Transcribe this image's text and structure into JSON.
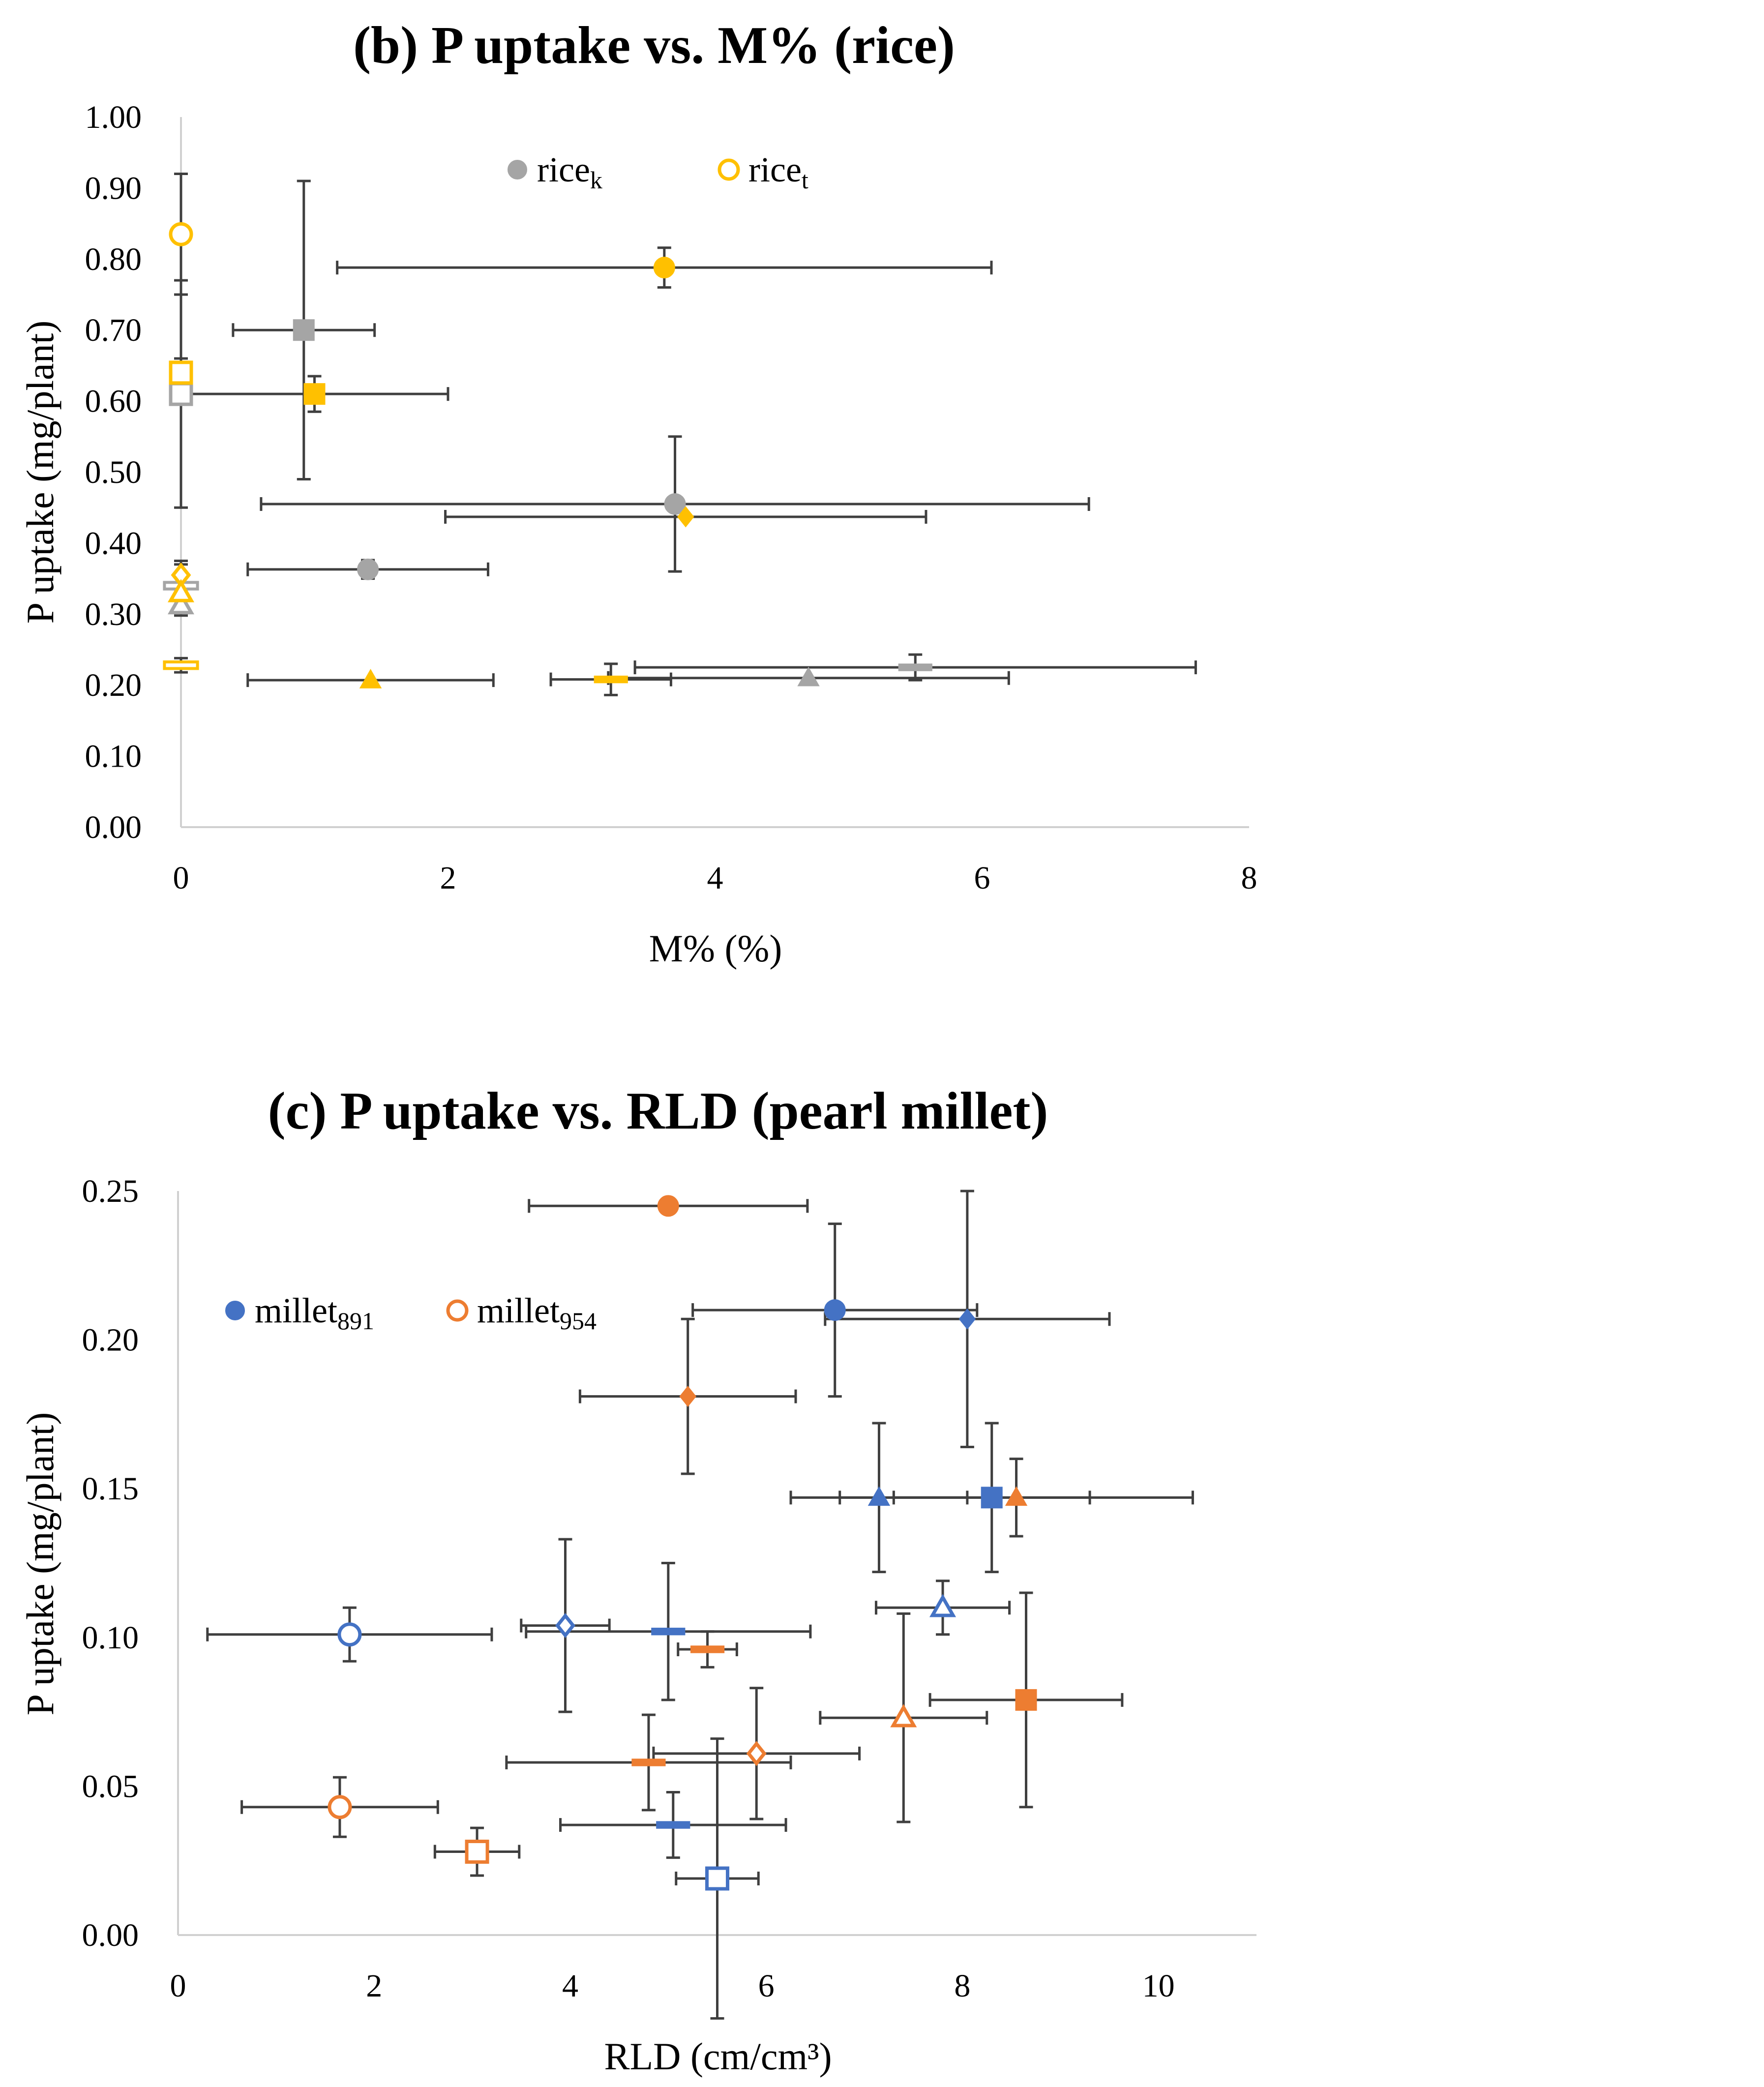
{
  "chart_data": [
    {
      "type": "scatter",
      "title": "(b) P uptake vs. M% (rice)",
      "xlabel": "M% (%)",
      "ylabel": "P uptake (mg/plant)",
      "xlim": [
        0,
        8
      ],
      "ylim": [
        0,
        1
      ],
      "xticks": [
        0,
        2,
        4,
        6,
        8
      ],
      "xtick_labels": [
        "0",
        "2",
        "4",
        "6",
        "8"
      ],
      "yticks": [
        0,
        0.1,
        0.2,
        0.3,
        0.4,
        0.5,
        0.6,
        0.7,
        0.8,
        0.9,
        1.0
      ],
      "ytick_labels": [
        "0.00",
        "0.10",
        "0.20",
        "0.30",
        "0.40",
        "0.50",
        "0.60",
        "0.70",
        "0.80",
        "0.90",
        "1.00"
      ],
      "grid": false,
      "legend": [
        {
          "base": "rice",
          "sub": "k",
          "marker": "circle",
          "fill": "#a5a5a5",
          "stroke": "#a5a5a5",
          "hollow": false
        },
        {
          "base": "rice",
          "sub": "t",
          "marker": "circle",
          "fill": "#ffffff",
          "stroke": "#ffc000",
          "hollow": true
        }
      ],
      "series": [
        {
          "color": "#a5a5a5",
          "hollow": false,
          "points": [
            {
              "x": 0.92,
              "y": 0.7,
              "xerr": 0.53,
              "yerr": 0.21,
              "marker": "square"
            },
            {
              "x": 3.7,
              "y": 0.455,
              "xerr": 3.1,
              "yerr": 0.095,
              "marker": "circle"
            },
            {
              "x": 1.4,
              "y": 0.363,
              "xerr": 0.9,
              "yerr": 0.013,
              "marker": "circle"
            },
            {
              "x": 4.7,
              "y": 0.21,
              "xerr": 1.5,
              "yerr": 0.0,
              "marker": "triangle"
            },
            {
              "x": 5.5,
              "y": 0.225,
              "xerr": 2.1,
              "yerr": 0.018,
              "marker": "dash"
            }
          ]
        },
        {
          "color": "#ffc000",
          "hollow": false,
          "points": [
            {
              "x": 3.62,
              "y": 0.788,
              "xerr": 2.45,
              "yerr": 0.028,
              "marker": "circle"
            },
            {
              "x": 1.0,
              "y": 0.61,
              "xerr": 1.0,
              "yerr": 0.025,
              "marker": "square"
            },
            {
              "x": 3.78,
              "y": 0.437,
              "xerr": 1.8,
              "yerr": 0.0,
              "marker": "diamond"
            },
            {
              "x": 1.42,
              "y": 0.207,
              "xerr": 0.92,
              "yerr": 0.0,
              "marker": "triangle"
            },
            {
              "x": 3.22,
              "y": 0.208,
              "xerr": 0.45,
              "yerr": 0.022,
              "marker": "dash"
            }
          ]
        },
        {
          "color": "#a5a5a5",
          "hollow": true,
          "points": [
            {
              "x": 0.0,
              "y": 0.61,
              "xerr": 0.0,
              "yerr": 0.16,
              "marker": "square"
            },
            {
              "x": 0.0,
              "y": 0.34,
              "xerr": 0.0,
              "yerr": 0.03,
              "marker": "dash"
            },
            {
              "x": 0.0,
              "y": 0.313,
              "xerr": 0.0,
              "yerr": 0.015,
              "marker": "triangle"
            }
          ]
        },
        {
          "color": "#ffc000",
          "hollow": true,
          "points": [
            {
              "x": 0.0,
              "y": 0.835,
              "xerr": 0.0,
              "yerr": 0.085,
              "marker": "circle"
            },
            {
              "x": 0.0,
              "y": 0.64,
              "xerr": 0.0,
              "yerr": 0.02,
              "marker": "square"
            },
            {
              "x": 0.0,
              "y": 0.355,
              "xerr": 0.0,
              "yerr": 0.02,
              "marker": "diamond"
            },
            {
              "x": 0.0,
              "y": 0.33,
              "xerr": 0.0,
              "yerr": 0.0,
              "marker": "triangle"
            },
            {
              "x": 0.0,
              "y": 0.228,
              "xerr": 0.0,
              "yerr": 0.01,
              "marker": "dash"
            }
          ]
        }
      ]
    },
    {
      "type": "scatter",
      "title": "(c) P uptake vs. RLD (pearl millet)",
      "xlabel": "RLD (cm/cm³)",
      "ylabel": "P uptake (mg/plant)",
      "xlim": [
        0,
        11
      ],
      "ylim": [
        0,
        0.25
      ],
      "xticks": [
        0,
        2,
        4,
        6,
        8,
        10
      ],
      "xtick_labels": [
        "0",
        "2",
        "4",
        "6",
        "8",
        "10"
      ],
      "yticks": [
        0,
        0.05,
        0.1,
        0.15,
        0.2,
        0.25
      ],
      "ytick_labels": [
        "0.00",
        "0.05",
        "0.10",
        "0.15",
        "0.20",
        "0.25"
      ],
      "grid": false,
      "legend": [
        {
          "base": "millet",
          "sub": "891",
          "marker": "circle",
          "fill": "#4472c4",
          "stroke": "#4472c4",
          "hollow": false
        },
        {
          "base": "millet",
          "sub": "954",
          "marker": "circle",
          "fill": "#ffffff",
          "stroke": "#ed7d31",
          "hollow": true
        }
      ],
      "series": [
        {
          "color": "#4472c4",
          "hollow": false,
          "points": [
            {
              "x": 6.7,
              "y": 0.21,
              "xerr": 1.45,
              "yerr": 0.029,
              "marker": "circle"
            },
            {
              "x": 8.05,
              "y": 0.207,
              "xerr": 1.45,
              "yerr": 0.043,
              "marker": "diamond"
            },
            {
              "x": 7.15,
              "y": 0.147,
              "xerr": 0.9,
              "yerr": 0.025,
              "marker": "triangle"
            },
            {
              "x": 8.3,
              "y": 0.147,
              "xerr": 1.0,
              "yerr": 0.025,
              "marker": "square"
            },
            {
              "x": 5.0,
              "y": 0.102,
              "xerr": 1.45,
              "yerr": 0.023,
              "marker": "dash"
            },
            {
              "x": 5.05,
              "y": 0.037,
              "xerr": 1.15,
              "yerr": 0.011,
              "marker": "dash"
            }
          ]
        },
        {
          "color": "#ed7d31",
          "hollow": false,
          "points": [
            {
              "x": 5.0,
              "y": 0.245,
              "xerr": 1.42,
              "yerr": 0.0,
              "marker": "circle"
            },
            {
              "x": 5.2,
              "y": 0.181,
              "xerr": 1.1,
              "yerr": 0.026,
              "marker": "diamond"
            },
            {
              "x": 8.55,
              "y": 0.147,
              "xerr": 1.8,
              "yerr": 0.013,
              "marker": "triangle"
            },
            {
              "x": 8.65,
              "y": 0.079,
              "xerr": 0.98,
              "yerr": 0.036,
              "marker": "square"
            },
            {
              "x": 5.4,
              "y": 0.096,
              "xerr": 0.3,
              "yerr": 0.006,
              "marker": "dash"
            },
            {
              "x": 4.8,
              "y": 0.058,
              "xerr": 1.45,
              "yerr": 0.016,
              "marker": "dash"
            }
          ]
        },
        {
          "color": "#4472c4",
          "hollow": true,
          "points": [
            {
              "x": 1.75,
              "y": 0.101,
              "xerr": 1.45,
              "yerr": 0.009,
              "marker": "circle"
            },
            {
              "x": 3.95,
              "y": 0.104,
              "xerr": 0.45,
              "yerr": 0.029,
              "marker": "diamond"
            },
            {
              "x": 7.8,
              "y": 0.11,
              "xerr": 0.68,
              "yerr": 0.009,
              "marker": "triangle"
            },
            {
              "x": 5.5,
              "y": 0.019,
              "xerr": 0.42,
              "yerr": 0.047,
              "marker": "square"
            }
          ]
        },
        {
          "color": "#ed7d31",
          "hollow": true,
          "points": [
            {
              "x": 1.65,
              "y": 0.043,
              "xerr": 1.0,
              "yerr": 0.01,
              "marker": "circle"
            },
            {
              "x": 5.9,
              "y": 0.061,
              "xerr": 1.05,
              "yerr": 0.022,
              "marker": "diamond"
            },
            {
              "x": 7.4,
              "y": 0.073,
              "xerr": 0.85,
              "yerr": 0.035,
              "marker": "triangle"
            },
            {
              "x": 3.05,
              "y": 0.028,
              "xerr": 0.43,
              "yerr": 0.008,
              "marker": "square"
            }
          ]
        }
      ]
    }
  ]
}
